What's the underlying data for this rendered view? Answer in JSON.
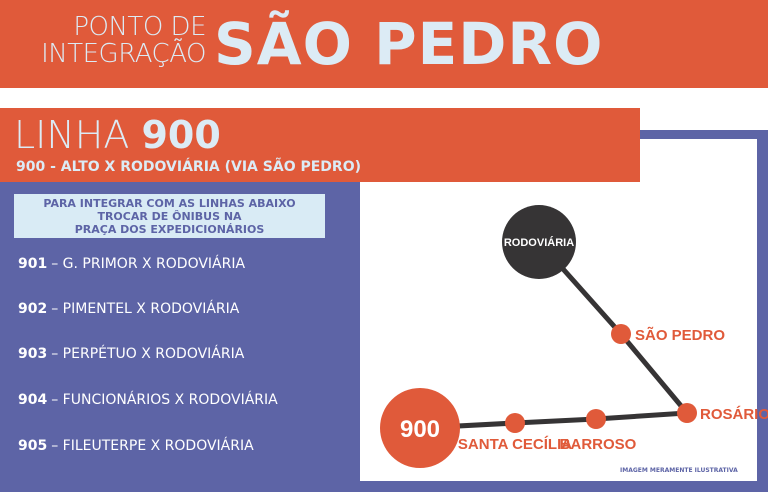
{
  "header": {
    "pre_line1": "PONTO DE",
    "pre_line2": "INTEGRAÇÃO",
    "title": "SÃO PEDRO"
  },
  "line": {
    "label": "LINHA",
    "number": "900",
    "subtitle": "900 - ALTO X RODOVIÁRIA (VIA SÃO PEDRO)"
  },
  "info": {
    "line1": "PARA INTEGRAR COM AS LINHAS ABAIXO",
    "line2": "TROCAR DE ÔNIBUS NA",
    "line3": "PRAÇA DOS EXPEDICIONÁRIOS"
  },
  "routes": [
    {
      "number": "901",
      "name": "– G. PRIMOR X RODOVIÁRIA"
    },
    {
      "number": "902",
      "name": "– PIMENTEL X RODOVIÁRIA"
    },
    {
      "number": "903",
      "name": "– PERPÉTUO X RODOVIÁRIA"
    },
    {
      "number": "904",
      "name": "– FUNCIONÁRIOS X RODOVIÁRIA"
    },
    {
      "number": "905",
      "name": "– FILEUTERPE X RODOVIÁRIA"
    }
  ],
  "map": {
    "start": "900",
    "terminal": "RODOVIÁRIA",
    "stops": [
      "SANTA CECÍLIA",
      "BARROSO",
      "ROSÁRIO",
      "SÃO PEDRO"
    ],
    "note": "IMAGEM MERAMENTE ILUSTRATIVA"
  },
  "colors": {
    "orange": "#e05a3a",
    "purple": "#5d64a6",
    "light": "#dcebf5",
    "dark": "#363435"
  }
}
